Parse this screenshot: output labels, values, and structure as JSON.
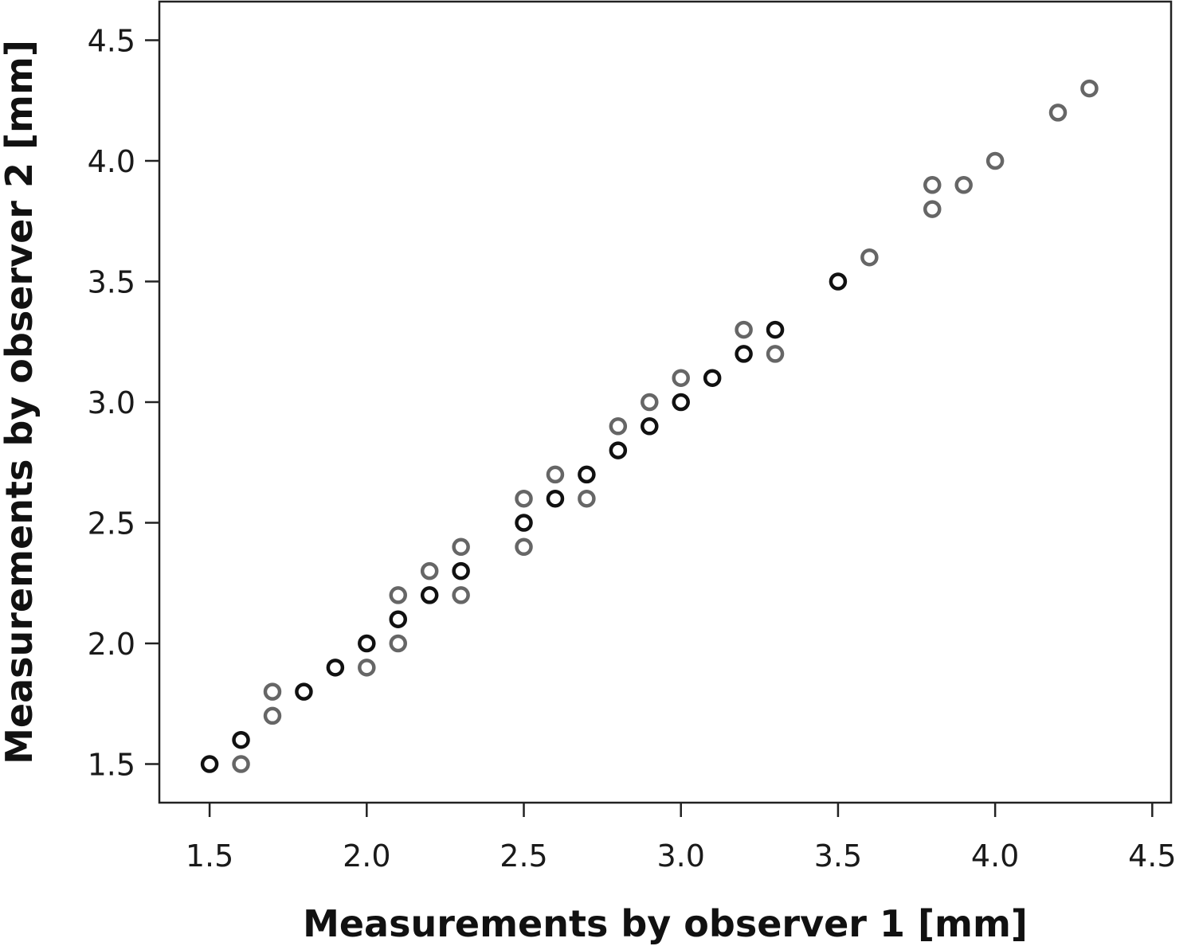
{
  "chart_data": {
    "type": "scatter",
    "title": "",
    "xlabel": "Measurements by observer 1 [mm]",
    "ylabel": "Measurements by observer 2 [mm]",
    "xlim": [
      1.34,
      4.56
    ],
    "ylim": [
      1.34,
      4.66
    ],
    "xticks": [
      "1.5",
      "2.0",
      "2.5",
      "3.0",
      "3.5",
      "4.0",
      "4.5"
    ],
    "yticks": [
      "1.5",
      "2.0",
      "2.5",
      "3.0",
      "3.5",
      "4.0",
      "4.5"
    ],
    "grid": false,
    "legend": "none",
    "series": [
      {
        "color": "#111111",
        "marker": "open-circle",
        "points": [
          [
            1.5,
            1.5
          ],
          [
            1.6,
            1.6
          ],
          [
            1.8,
            1.8
          ],
          [
            1.9,
            1.9
          ],
          [
            2.0,
            2.0
          ],
          [
            2.1,
            2.1
          ],
          [
            2.2,
            2.2
          ],
          [
            2.3,
            2.3
          ],
          [
            2.5,
            2.5
          ],
          [
            2.6,
            2.6
          ],
          [
            2.7,
            2.7
          ],
          [
            2.8,
            2.8
          ],
          [
            2.9,
            2.9
          ],
          [
            3.0,
            3.0
          ],
          [
            3.1,
            3.1
          ],
          [
            3.2,
            3.2
          ],
          [
            3.3,
            3.3
          ],
          [
            3.5,
            3.5
          ]
        ]
      },
      {
        "color": "#666666",
        "marker": "open-circle",
        "points": [
          [
            1.6,
            1.5
          ],
          [
            1.7,
            1.7
          ],
          [
            1.7,
            1.8
          ],
          [
            2.0,
            1.9
          ],
          [
            2.1,
            2.0
          ],
          [
            2.1,
            2.2
          ],
          [
            2.2,
            2.3
          ],
          [
            2.3,
            2.2
          ],
          [
            2.3,
            2.4
          ],
          [
            2.5,
            2.4
          ],
          [
            2.5,
            2.6
          ],
          [
            2.6,
            2.7
          ],
          [
            2.7,
            2.6
          ],
          [
            2.8,
            2.9
          ],
          [
            2.9,
            3.0
          ],
          [
            3.0,
            3.1
          ],
          [
            3.2,
            3.3
          ],
          [
            3.3,
            3.2
          ],
          [
            3.6,
            3.6
          ],
          [
            3.8,
            3.8
          ],
          [
            3.8,
            3.9
          ],
          [
            3.9,
            3.9
          ],
          [
            4.0,
            4.0
          ],
          [
            4.2,
            4.2
          ],
          [
            4.3,
            4.3
          ]
        ]
      }
    ]
  }
}
